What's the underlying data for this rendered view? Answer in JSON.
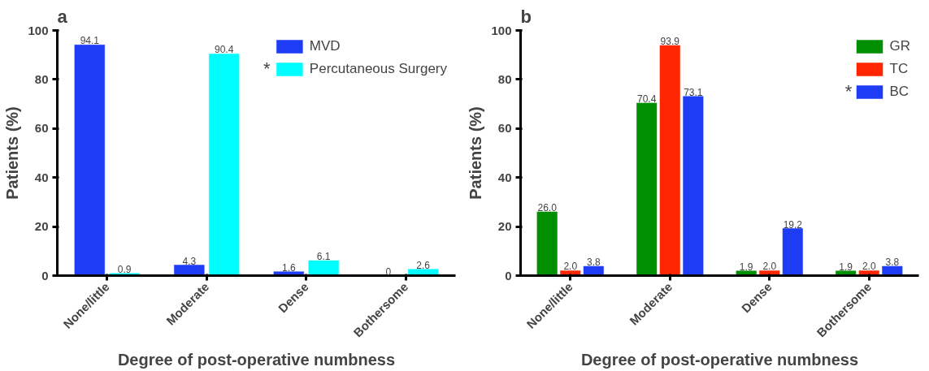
{
  "chart_data": [
    {
      "type": "bar",
      "title": "a",
      "xlabel": "Degree of post-operative numbness",
      "ylabel": "Patients (%)",
      "categories": [
        "None/little",
        "Moderate",
        "Dense",
        "Bothersome"
      ],
      "series": [
        {
          "name": "MVD",
          "color": "#1f3cf5",
          "values": [
            94.1,
            4.3,
            1.6,
            0
          ]
        },
        {
          "name": "Percutaneous Surgery",
          "color": "#00fdff",
          "values": [
            0.9,
            90.4,
            6.1,
            2.6
          ]
        }
      ],
      "ylim": [
        0,
        100
      ],
      "yticks": [
        0,
        20,
        40,
        60,
        80,
        100
      ],
      "grid": false,
      "legend": "top right",
      "data_labels": true,
      "annotations": [
        "*"
      ]
    },
    {
      "type": "bar",
      "title": "b",
      "xlabel": "Degree of post-operative numbness",
      "ylabel": "Patients (%)",
      "categories": [
        "None/little",
        "Moderate",
        "Dense",
        "Bothersome"
      ],
      "series": [
        {
          "name": "GR",
          "color": "#008f00",
          "values": [
            26.0,
            70.4,
            1.9,
            1.9
          ],
          "value_labels": [
            "26.0",
            "70.4",
            "1.9",
            "1.9"
          ]
        },
        {
          "name": "TC",
          "color": "#ff2600",
          "values": [
            2.0,
            93.9,
            2.0,
            2.0
          ],
          "value_labels": [
            "2.0",
            "93.9",
            "2.0",
            "2.0"
          ]
        },
        {
          "name": "BC",
          "color": "#1f3cf5",
          "values": [
            3.8,
            73.1,
            19.2,
            3.8
          ],
          "value_labels": [
            "3.8",
            "73.1",
            "19.2",
            "3.8"
          ]
        }
      ],
      "ylim": [
        0,
        100
      ],
      "yticks": [
        0,
        20,
        40,
        60,
        80,
        100
      ],
      "grid": false,
      "legend": "top right",
      "annotations": [
        "*"
      ]
    }
  ]
}
